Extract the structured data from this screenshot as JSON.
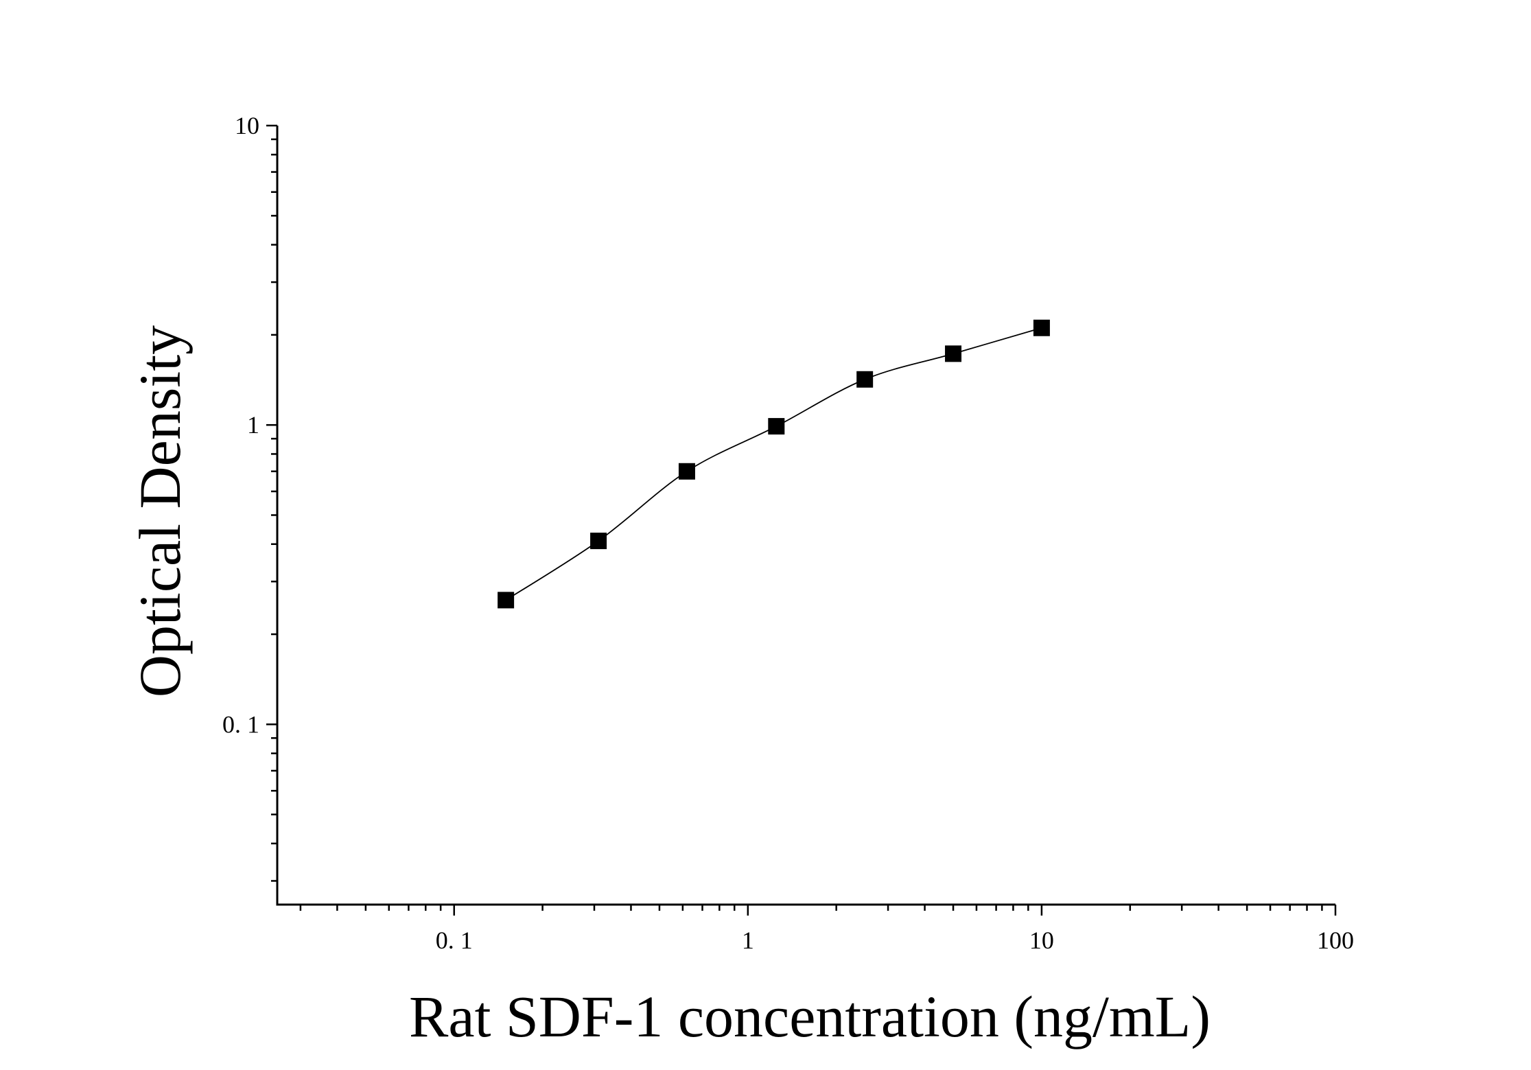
{
  "chart_data": {
    "type": "scatter",
    "title": "",
    "xlabel": "Rat SDF-1 concentration (ng/mL)",
    "ylabel": "Optical Density",
    "xscale": "log",
    "yscale": "log",
    "xlim": [
      0.025,
      100
    ],
    "ylim": [
      0.025,
      10
    ],
    "x_tick_labels": [
      {
        "value": 0.1,
        "label": "0. 1"
      },
      {
        "value": 1,
        "label": "1"
      },
      {
        "value": 10,
        "label": "10"
      },
      {
        "value": 100,
        "label": "100"
      }
    ],
    "y_tick_labels": [
      {
        "value": 0.1,
        "label": "0. 1"
      },
      {
        "value": 1,
        "label": "1"
      },
      {
        "value": 10,
        "label": "10"
      }
    ],
    "grid": false,
    "legend": "none",
    "series": [
      {
        "x": [
          0.15,
          0.31,
          0.62,
          1.25,
          2.5,
          5,
          10
        ],
        "y": [
          0.26,
          0.41,
          0.7,
          0.99,
          1.42,
          1.73,
          2.11
        ],
        "marker": "square",
        "fit_line": true,
        "color": "#000000"
      }
    ]
  }
}
